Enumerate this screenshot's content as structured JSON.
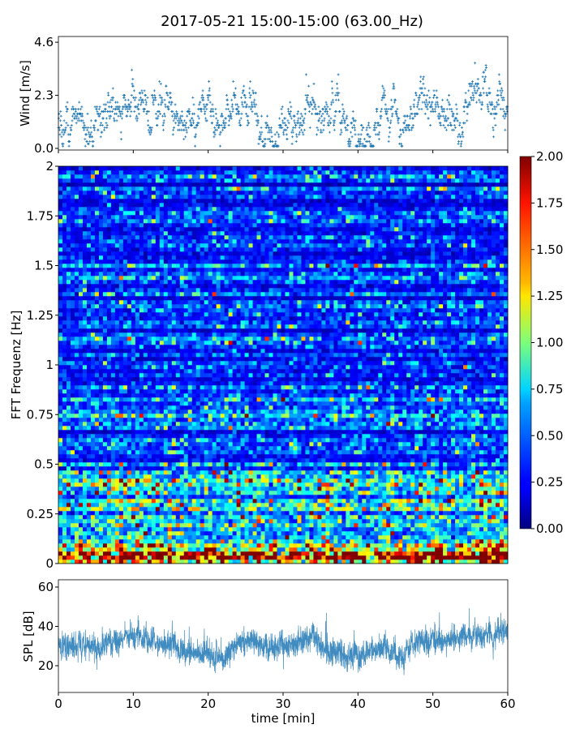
{
  "title": "2017-05-21 15:00-15:00 (63.00_Hz)",
  "chart_data": [
    {
      "type": "scatter",
      "name": "wind",
      "ylabel": "Wind [m/s]",
      "ylim": [
        -0.07,
        4.85
      ],
      "yticks": [
        "0.0",
        "2.3",
        "4.6"
      ],
      "ytick_values": [
        0.0,
        2.3,
        4.6
      ],
      "xlim": [
        0,
        60
      ],
      "xtick_values": [
        0,
        10,
        20,
        30,
        40,
        50,
        60
      ],
      "marker": "+",
      "color": "#1f77b4",
      "x_minutes_profile": [
        0,
        2,
        4,
        6,
        8,
        10,
        12,
        14,
        16,
        18,
        20,
        22,
        24,
        26,
        28,
        30,
        32,
        34,
        36,
        38,
        40,
        42,
        44,
        46,
        48,
        50,
        52,
        54,
        56,
        58,
        60
      ],
      "mean_wind_profile": [
        0.8,
        0.7,
        1.2,
        1.6,
        1.7,
        2.0,
        1.6,
        2.1,
        1.2,
        0.9,
        1.6,
        0.9,
        1.4,
        2.0,
        0.5,
        1.0,
        1.1,
        1.6,
        1.6,
        1.2,
        0.9,
        0.7,
        1.8,
        0.9,
        2.0,
        2.1,
        1.1,
        1.2,
        2.0,
        2.3,
        2.0
      ]
    },
    {
      "type": "heatmap",
      "name": "spectrogram",
      "ylabel": "FFT Frequenz [Hz]",
      "ylim": [
        0,
        2
      ],
      "yticks": [
        "0",
        "0.25",
        "0.5",
        "0.75",
        "1",
        "1.25",
        "1.5",
        "1.75",
        "2"
      ],
      "ytick_values": [
        0,
        0.25,
        0.5,
        0.75,
        1,
        1.25,
        1.5,
        1.75,
        2
      ],
      "xlim": [
        0,
        60
      ],
      "colormap": "jet",
      "clim": [
        0,
        2
      ],
      "colorbar_ticks": [
        "0.00",
        "0.25",
        "0.50",
        "0.75",
        "1.00",
        "1.25",
        "1.50",
        "1.75",
        "2.00"
      ],
      "colorbar_tick_values": [
        0,
        0.25,
        0.5,
        0.75,
        1,
        1.25,
        1.5,
        1.75,
        2
      ],
      "freq_profile_hz": [
        0,
        0.05,
        0.1,
        0.25,
        0.5,
        1.0,
        1.5,
        2.0
      ],
      "mean_power_profile": [
        1.6,
        1.2,
        0.85,
        0.6,
        0.45,
        0.35,
        0.32,
        0.3
      ]
    },
    {
      "type": "line",
      "name": "spl",
      "ylabel": "SPL [dB]",
      "xlabel": "time [min]",
      "ylim": [
        6.4,
        63.7
      ],
      "yticks": [
        "20",
        "40",
        "60"
      ],
      "ytick_values": [
        20,
        40,
        60
      ],
      "xlim": [
        0,
        60
      ],
      "xticks": [
        "0",
        "10",
        "20",
        "30",
        "40",
        "50",
        "60"
      ],
      "xtick_values": [
        0,
        10,
        20,
        30,
        40,
        50,
        60
      ],
      "color": "#1f77b4",
      "x_minutes_profile": [
        0,
        2,
        4,
        6,
        8,
        10,
        12,
        14,
        16,
        18,
        20,
        22,
        24,
        26,
        28,
        30,
        32,
        34,
        36,
        38,
        40,
        42,
        44,
        46,
        48,
        50,
        52,
        54,
        56,
        58,
        60
      ],
      "mean_spl_profile": [
        30,
        30,
        30,
        31,
        32,
        35,
        33,
        32,
        29,
        27,
        27,
        23,
        32,
        33,
        30,
        29,
        33,
        35,
        27,
        25,
        25,
        28,
        27,
        24,
        33,
        31,
        33,
        35,
        36,
        35,
        38
      ]
    }
  ]
}
